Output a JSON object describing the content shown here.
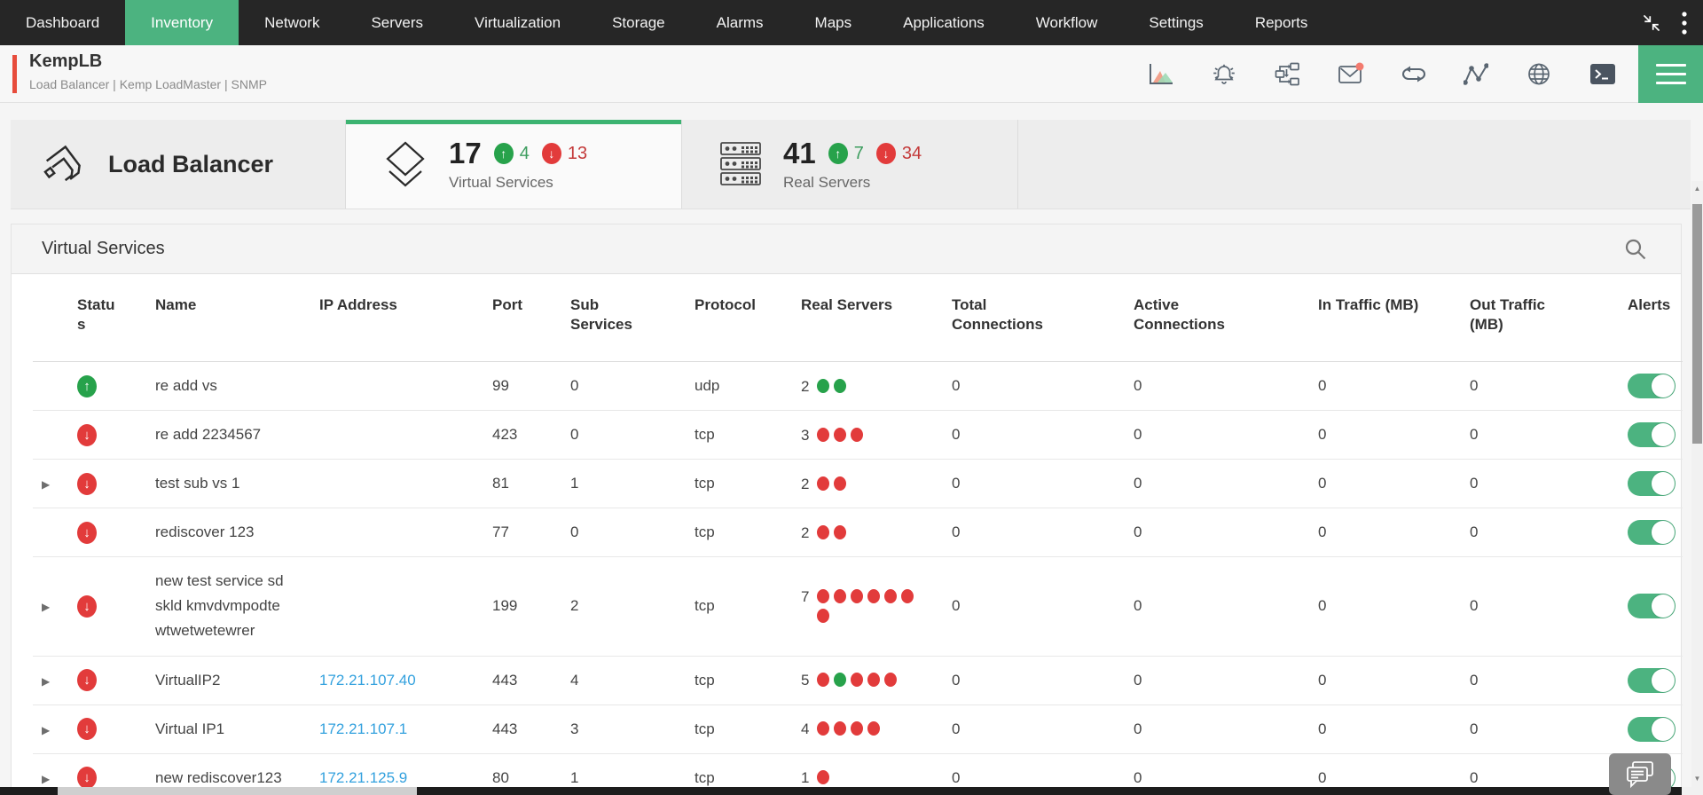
{
  "colors": {
    "accent_green": "#4cb380",
    "status_up_green": "#27a24b",
    "status_down_red": "#e23b3b",
    "link_blue": "#33a1de",
    "nav_background": "#262626",
    "device_accent_red": "#e74c3c"
  },
  "nav": {
    "items": [
      "Dashboard",
      "Inventory",
      "Network",
      "Servers",
      "Virtualization",
      "Storage",
      "Alarms",
      "Maps",
      "Applications",
      "Workflow",
      "Settings",
      "Reports"
    ],
    "active": "Inventory",
    "right_icons": [
      "collapse-icon",
      "kebab-menu-icon"
    ]
  },
  "device_header": {
    "title": "KempLB",
    "subtitle": "Load Balancer | Kemp LoadMaster  | SNMP",
    "toolbar_icons": [
      "performance-chart-icon",
      "alarm-bell-icon",
      "topology-icon",
      "mail-icon",
      "rediscover-loop-icon",
      "line-graph-icon",
      "web-globe-icon",
      "terminal-icon",
      "hamburger-menu-icon"
    ],
    "mail_has_badge": true
  },
  "summary": {
    "section_title": "Load Balancer",
    "tabs": [
      {
        "label": "Virtual Services",
        "count": "17",
        "up": "4",
        "down": "13",
        "active": true
      },
      {
        "label": "Real Servers",
        "count": "41",
        "up": "7",
        "down": "34",
        "active": false
      }
    ]
  },
  "panel": {
    "title": "Virtual Services"
  },
  "table": {
    "columns": [
      "Status",
      "Name",
      "IP Address",
      "Port",
      "Sub Services",
      "Protocol",
      "Real Servers",
      "Total Connections",
      "Active Connections",
      "In Traffic (MB)",
      "Out Traffic (MB)",
      "Alerts"
    ],
    "rows": [
      {
        "expandable": false,
        "status": "up",
        "name": "re add vs",
        "ip": "",
        "port": "99",
        "sub_services": "0",
        "protocol": "udp",
        "real_servers_count": "2",
        "real_server_dots": [
          "green",
          "green"
        ],
        "total_connections": "0",
        "active_connections": "0",
        "in_traffic": "0",
        "out_traffic": "0",
        "alerts_on": true
      },
      {
        "expandable": false,
        "status": "down",
        "name": "re add 2234567",
        "ip": "",
        "port": "423",
        "sub_services": "0",
        "protocol": "tcp",
        "real_servers_count": "3",
        "real_server_dots": [
          "red",
          "red",
          "red"
        ],
        "total_connections": "0",
        "active_connections": "0",
        "in_traffic": "0",
        "out_traffic": "0",
        "alerts_on": true
      },
      {
        "expandable": true,
        "status": "down",
        "name": "test sub vs 1",
        "ip": "",
        "port": "81",
        "sub_services": "1",
        "protocol": "tcp",
        "real_servers_count": "2",
        "real_server_dots": [
          "red",
          "red"
        ],
        "total_connections": "0",
        "active_connections": "0",
        "in_traffic": "0",
        "out_traffic": "0",
        "alerts_on": true
      },
      {
        "expandable": false,
        "status": "down",
        "name": "rediscover 123",
        "ip": "",
        "port": "77",
        "sub_services": "0",
        "protocol": "tcp",
        "real_servers_count": "2",
        "real_server_dots": [
          "red",
          "red"
        ],
        "total_connections": "0",
        "active_connections": "0",
        "in_traffic": "0",
        "out_traffic": "0",
        "alerts_on": true
      },
      {
        "expandable": true,
        "status": "down",
        "name": "new test service sd skld kmvdvmpodte wtwetwetewrer",
        "ip": "",
        "port": "199",
        "sub_services": "2",
        "protocol": "tcp",
        "real_servers_count": "7",
        "real_server_dots": [
          "red",
          "red",
          "red",
          "red",
          "red",
          "red",
          "red"
        ],
        "total_connections": "0",
        "active_connections": "0",
        "in_traffic": "0",
        "out_traffic": "0",
        "alerts_on": true
      },
      {
        "expandable": true,
        "status": "down",
        "name": "VirtualIP2",
        "ip": "172.21.107.40",
        "port": "443",
        "sub_services": "4",
        "protocol": "tcp",
        "real_servers_count": "5",
        "real_server_dots": [
          "red",
          "green",
          "red",
          "red",
          "red"
        ],
        "total_connections": "0",
        "active_connections": "0",
        "in_traffic": "0",
        "out_traffic": "0",
        "alerts_on": true
      },
      {
        "expandable": true,
        "status": "down",
        "name": "Virtual IP1",
        "ip": "172.21.107.1",
        "port": "443",
        "sub_services": "3",
        "protocol": "tcp",
        "real_servers_count": "4",
        "real_server_dots": [
          "red",
          "red",
          "red",
          "red"
        ],
        "total_connections": "0",
        "active_connections": "0",
        "in_traffic": "0",
        "out_traffic": "0",
        "alerts_on": true
      },
      {
        "expandable": true,
        "status": "down",
        "name": "new rediscover123",
        "ip": "172.21.125.9",
        "port": "80",
        "sub_services": "1",
        "protocol": "tcp",
        "real_servers_count": "1",
        "real_server_dots": [
          "red"
        ],
        "total_connections": "0",
        "active_connections": "0",
        "in_traffic": "0",
        "out_traffic": "0",
        "alerts_on": true
      }
    ]
  }
}
